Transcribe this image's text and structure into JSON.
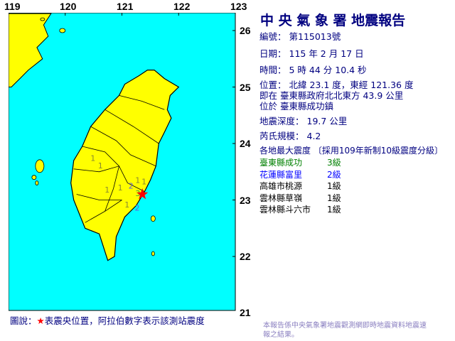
{
  "title": "中 央 氣 象 署 地震報告",
  "report": {
    "number_label": "編號：",
    "number": "第115013號",
    "date_label": "日期：",
    "date": "115 年 2 月 17 日",
    "time_label": "時間：",
    "time": "5 時 44 分 10.4 秒",
    "location_label": "位置：",
    "location": "北緯 23.1 度，東經 121.36 度",
    "relative": "即在 臺東縣政府北北東方 43.9 公里",
    "place": "位於 臺東縣成功鎮",
    "depth_label": "地震深度：",
    "depth": "19.7 公里",
    "magnitude_label": "芮氏規模：",
    "magnitude": "4.2",
    "intensity_header": "各地最大震度 〔採用109年新制10級震度分級〕"
  },
  "stations": [
    {
      "name": "臺東縣成功",
      "level": "3級",
      "color": "#008000"
    },
    {
      "name": "花蓮縣富里",
      "level": "2級",
      "color": "#0000ff"
    },
    {
      "name": "高雄市桃源",
      "level": "1級",
      "color": "#000000"
    },
    {
      "name": "雲林縣草嶺",
      "level": "1級",
      "color": "#000000"
    },
    {
      "name": "雲林縣斗六市",
      "level": "1級",
      "color": "#000000"
    }
  ],
  "map": {
    "lon_ticks": [
      "119",
      "120",
      "121",
      "122",
      "123"
    ],
    "lat_ticks": [
      "26",
      "25",
      "24",
      "23",
      "22",
      "21"
    ],
    "sea_color": "#00ffff",
    "land_color": "#ffff00",
    "epicenter": {
      "lon": 121.36,
      "lat": 23.1,
      "icon": "red-star-icon",
      "color": "#ff0000"
    },
    "intensity_marks": [
      {
        "v": "1",
        "lon": 120.49,
        "lat": 23.74,
        "color": "#8a8a30"
      },
      {
        "v": "1",
        "lon": 120.62,
        "lat": 23.61,
        "color": "#8a8a30"
      },
      {
        "v": "1",
        "lon": 120.74,
        "lat": 23.18,
        "color": "#8a8a30"
      },
      {
        "v": "1",
        "lon": 120.97,
        "lat": 23.22,
        "color": "#8a8a30"
      },
      {
        "v": "1",
        "lon": 121.28,
        "lat": 23.35,
        "color": "#8a8a30"
      },
      {
        "v": "1",
        "lon": 121.39,
        "lat": 23.33,
        "color": "#8a8a30"
      },
      {
        "v": "2",
        "lon": 121.26,
        "lat": 23.25,
        "color": "#6060e0"
      },
      {
        "v": "3",
        "lon": 121.18,
        "lat": 23.12,
        "color": "#40a040"
      },
      {
        "v": "1",
        "lon": 121.09,
        "lat": 22.92,
        "color": "#8a8a30"
      },
      {
        "v": "2",
        "lon": 121.27,
        "lat": 23.01,
        "color": "#6060e0"
      }
    ]
  },
  "legend": {
    "prefix": "圖說：",
    "star": "★",
    "text": "表震央位置，阿拉伯數字表示該測站震度"
  },
  "footer": "本報告係中央氣象署地震觀測網即時地震資料地震速報之結果。"
}
